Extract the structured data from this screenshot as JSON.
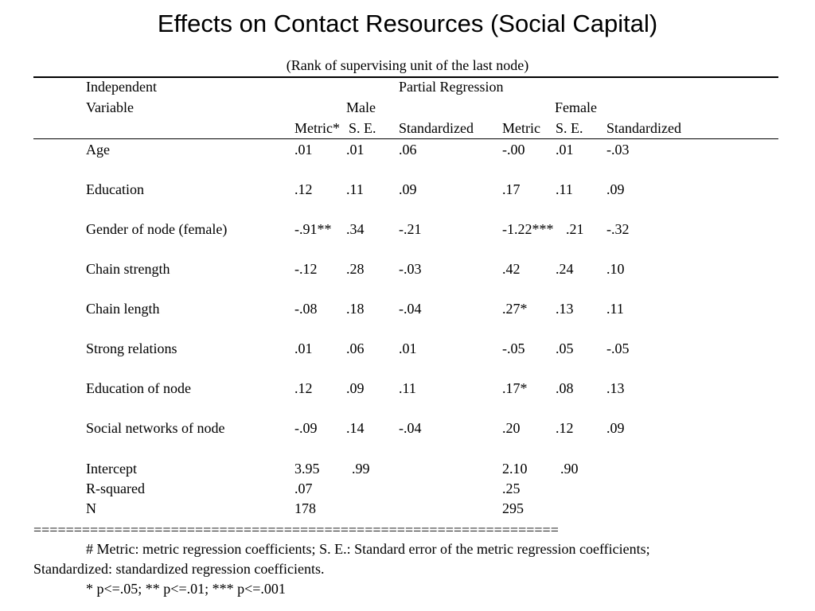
{
  "title": "Effects on Contact Resources (Social Capital)",
  "subtitle": "(Rank of supervising unit of the last node)",
  "header": {
    "independent": "Independent",
    "variable": "Variable",
    "partial_regression": "Partial Regression",
    "male": "Male",
    "female": "Female",
    "male_metric": "Metric*",
    "male_se": "S. E.",
    "male_standardized": "Standardized",
    "female_metric": "Metric",
    "female_se": "S. E.",
    "female_standardized": "Standardized"
  },
  "rows": [
    {
      "variable": "Age",
      "m_metric": ".01",
      "m_se": ".01",
      "m_std": ".06",
      "f_metric": "-.00",
      "f_se": ".01",
      "f_std": "-.03"
    },
    {
      "variable": "Education",
      "m_metric": ".12",
      "m_se": ".11",
      "m_std": ".09",
      "f_metric": ".17",
      "f_se": ".11",
      "f_std": ".09"
    },
    {
      "variable": "Gender of node (female)",
      "m_metric": "-.91**",
      "m_se": ".34",
      "m_std": "-.21",
      "f_metric": "-1.22***",
      "f_se": ".21",
      "f_std": "-.32"
    },
    {
      "variable": "Chain strength",
      "m_metric": "-.12",
      "m_se": ".28",
      "m_std": "-.03",
      "f_metric": ".42",
      "f_se": ".24",
      "f_std": ".10"
    },
    {
      "variable": "Chain length",
      "m_metric": "-.08",
      "m_se": ".18",
      "m_std": "-.04",
      "f_metric": ".27*",
      "f_se": ".13",
      "f_std": ".11"
    },
    {
      "variable": "Strong relations",
      "m_metric": ".01",
      "m_se": ".06",
      "m_std": ".01",
      "f_metric": "-.05",
      "f_se": ".05",
      "f_std": "-.05"
    },
    {
      "variable": "Education of node",
      "m_metric": ".12",
      "m_se": ".09",
      "m_std": ".11",
      "f_metric": ".17*",
      "f_se": ".08",
      "f_std": ".13"
    },
    {
      "variable": "Social networks of node",
      "m_metric": "-.09",
      "m_se": ".14",
      "m_std": "-.04",
      "f_metric": ".20",
      "f_se": ".12",
      "f_std": ".09"
    }
  ],
  "intercept": {
    "label": "Intercept",
    "male": "3.95",
    "male_se": ".99",
    "female": "2.10",
    "female_se": ".90"
  },
  "rsquared": {
    "label": "R-squared",
    "male": ".07",
    "female": ".25"
  },
  "n": {
    "label": "N",
    "male": "178",
    "female": "295"
  },
  "separator": "=================================================================",
  "notes": {
    "line1": "# Metric: metric regression coefficients; S. E.: Standard error of the metric regression coefficients;",
    "line2": "Standardized: standardized regression coefficients.",
    "line3": "* p<=.05; ** p<=.01; *** p<=.001"
  }
}
